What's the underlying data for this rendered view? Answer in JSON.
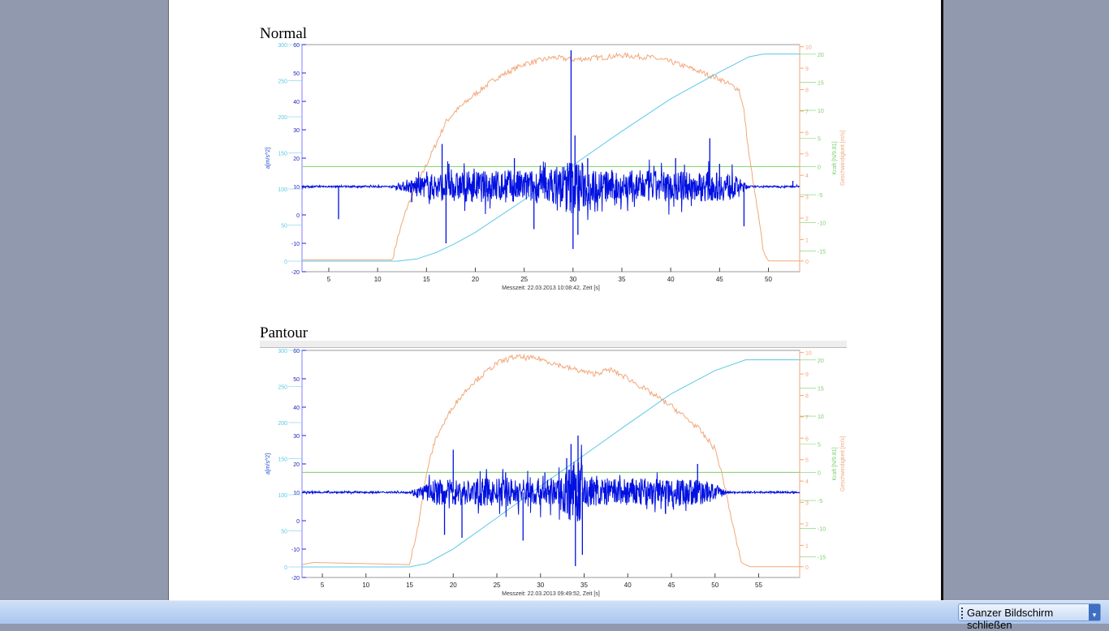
{
  "taskbar": {
    "close_fullscreen_label": "Ganzer Bildschirm schließen",
    "dropdown_icon": "chevron-down-icon"
  },
  "colors": {
    "accel": "#0010e0",
    "distance": "#5cc8e8",
    "force": "#7ccf6a",
    "speed": "#f2a77a"
  },
  "chart_data": [
    {
      "type": "line",
      "title": "Normal",
      "xlabel": "Messzeit: 22.03.2013   10:08:42,   Zeit [s]",
      "xlim": [
        2.26,
        53.2
      ],
      "xticks": [
        5,
        10,
        15,
        20,
        25,
        30,
        35,
        40,
        45,
        50
      ],
      "left_axis_label": "a[m/s^2]",
      "left_ticks": [
        60,
        50,
        40,
        30,
        20,
        10,
        0,
        -10,
        -20
      ],
      "left_lim": [
        -20,
        60
      ],
      "left2_ticks": [
        300,
        250,
        200,
        150,
        100,
        50,
        0
      ],
      "left2_lim": [
        -14.6,
        300
      ],
      "right_axis_labels": [
        "Kraft [N/9.81]",
        "Geschwindigkeit [m/s]"
      ],
      "right_force_ticks": [
        20,
        15,
        10,
        5,
        0,
        -5,
        -10,
        -15
      ],
      "right_force_lim": [
        -18.7,
        21.7
      ],
      "right_speed_ticks": [
        10,
        9,
        8,
        7,
        6,
        5,
        4,
        3,
        2,
        1,
        0
      ],
      "right_speed_lim": [
        -0.5,
        10.1
      ],
      "series": [
        {
          "name": "Geschwindigkeit",
          "axis": "speed",
          "points": [
            [
              2.3,
              0.05
            ],
            [
              11.5,
              0.05
            ],
            [
              12,
              1
            ],
            [
              13,
              2.5
            ],
            [
              15,
              4.5
            ],
            [
              16,
              5.5
            ],
            [
              17,
              6.5
            ],
            [
              18,
              7
            ],
            [
              20,
              7.8
            ],
            [
              22,
              8.5
            ],
            [
              25,
              9.2
            ],
            [
              28,
              9.5
            ],
            [
              30,
              9.4
            ],
            [
              33,
              9.5
            ],
            [
              35,
              9.6
            ],
            [
              38,
              9.5
            ],
            [
              40,
              9.3
            ],
            [
              42,
              9
            ],
            [
              45,
              8.5
            ],
            [
              47,
              8
            ],
            [
              47.5,
              7
            ],
            [
              48,
              5
            ],
            [
              49,
              2
            ],
            [
              49.5,
              0.4
            ],
            [
              50,
              0
            ],
            [
              53.2,
              0
            ]
          ]
        },
        {
          "name": "Weg",
          "axis": "left2",
          "points": [
            [
              2.3,
              0
            ],
            [
              12,
              0
            ],
            [
              14,
              3
            ],
            [
              16,
              12
            ],
            [
              18,
              25
            ],
            [
              20,
              40
            ],
            [
              25,
              85
            ],
            [
              30,
              133
            ],
            [
              35,
              180
            ],
            [
              40,
              225
            ],
            [
              45,
              262
            ],
            [
              48,
              283
            ],
            [
              49.5,
              287
            ],
            [
              53.2,
              287
            ]
          ]
        },
        {
          "name": "Kraft",
          "axis": "force",
          "points": [
            [
              2.3,
              0
            ],
            [
              53.2,
              0
            ]
          ]
        },
        {
          "name": "Beschleunigung",
          "axis": "left",
          "base": 10,
          "envelope": [
            [
              2.3,
              0.3
            ],
            [
              11.5,
              0.3
            ],
            [
              12.5,
              1.5
            ],
            [
              14,
              3
            ],
            [
              16,
              5
            ],
            [
              20,
              5.5
            ],
            [
              28,
              6
            ],
            [
              29.5,
              10
            ],
            [
              30.5,
              10
            ],
            [
              32,
              6
            ],
            [
              40,
              5.5
            ],
            [
              46,
              5
            ],
            [
              47,
              3
            ],
            [
              48,
              0.3
            ],
            [
              53.2,
              0.3
            ]
          ],
          "spikes": [
            [
              6,
              -1.5
            ],
            [
              13.5,
              4.5
            ],
            [
              15.3,
              10
            ],
            [
              16.6,
              25
            ],
            [
              17,
              -10
            ],
            [
              17.3,
              18
            ],
            [
              21,
              12
            ],
            [
              24,
              20
            ],
            [
              26,
              -5
            ],
            [
              29.8,
              58
            ],
            [
              30,
              -12
            ],
            [
              30.2,
              28
            ],
            [
              30.5,
              -7
            ],
            [
              31.5,
              20
            ],
            [
              36,
              15
            ],
            [
              39,
              12
            ],
            [
              40.5,
              20
            ],
            [
              44,
              27
            ],
            [
              45,
              18
            ],
            [
              47.5,
              -4
            ],
            [
              52.5,
              12
            ]
          ]
        }
      ]
    },
    {
      "type": "line",
      "title": "Pantour",
      "xlabel": "Messzeit: 22.03.2013   09:49:52,   Zeit [s]",
      "xlim": [
        2.67,
        59.7
      ],
      "xticks": [
        5,
        10,
        15,
        20,
        25,
        30,
        35,
        40,
        45,
        50,
        55
      ],
      "left_axis_label": "a[m/s^2]",
      "left_ticks": [
        60,
        50,
        40,
        30,
        20,
        10,
        0,
        -10,
        -20
      ],
      "left_lim": [
        -20,
        60
      ],
      "left2_ticks": [
        300,
        250,
        200,
        150,
        100,
        50,
        0
      ],
      "left2_lim": [
        -14.6,
        300
      ],
      "right_axis_labels": [
        "Kraft [N/9.81]",
        "Geschwindigkeit [m/s]"
      ],
      "right_force_ticks": [
        20,
        15,
        10,
        5,
        0,
        -5,
        -10,
        -15
      ],
      "right_force_lim": [
        -18.7,
        21.7
      ],
      "right_speed_ticks": [
        10,
        9,
        8,
        7,
        6,
        5,
        4,
        3,
        2,
        1,
        0
      ],
      "right_speed_lim": [
        -0.5,
        10.1
      ],
      "series": [
        {
          "name": "Geschwindigkeit",
          "axis": "speed",
          "points": [
            [
              2.7,
              0.1
            ],
            [
              4,
              0.2
            ],
            [
              15,
              0.1
            ],
            [
              16,
              2
            ],
            [
              17,
              4.5
            ],
            [
              18,
              6
            ],
            [
              20,
              7.5
            ],
            [
              22,
              8.5
            ],
            [
              25,
              9.5
            ],
            [
              27,
              9.8
            ],
            [
              30,
              9.7
            ],
            [
              33,
              9.3
            ],
            [
              36,
              9
            ],
            [
              38,
              9.2
            ],
            [
              40,
              8.8
            ],
            [
              45,
              7.5
            ],
            [
              48,
              6.5
            ],
            [
              50,
              5.5
            ],
            [
              51,
              4
            ],
            [
              52,
              2
            ],
            [
              53,
              0.2
            ],
            [
              54,
              0
            ],
            [
              59.7,
              0
            ]
          ]
        },
        {
          "name": "Weg",
          "axis": "left2",
          "points": [
            [
              2.7,
              0
            ],
            [
              15,
              0
            ],
            [
              17,
              5
            ],
            [
              20,
              25
            ],
            [
              25,
              68
            ],
            [
              30,
              112
            ],
            [
              35,
              155
            ],
            [
              40,
              198
            ],
            [
              45,
              240
            ],
            [
              50,
              272
            ],
            [
              53.5,
              287
            ],
            [
              59.7,
              287
            ]
          ]
        },
        {
          "name": "Kraft",
          "axis": "force",
          "points": [
            [
              2.7,
              0
            ],
            [
              59.7,
              0
            ]
          ]
        },
        {
          "name": "Beschleunigung",
          "axis": "left",
          "base": 10,
          "envelope": [
            [
              2.7,
              0.3
            ],
            [
              15,
              0.3
            ],
            [
              16,
              2
            ],
            [
              18,
              4.5
            ],
            [
              25,
              5
            ],
            [
              32,
              5
            ],
            [
              33.5,
              11
            ],
            [
              34.5,
              11
            ],
            [
              36,
              5
            ],
            [
              48,
              5
            ],
            [
              50,
              3
            ],
            [
              51.5,
              0.3
            ],
            [
              59.7,
              0.3
            ]
          ],
          "spikes": [
            [
              19,
              -5
            ],
            [
              20,
              25
            ],
            [
              21,
              -6
            ],
            [
              26,
              17
            ],
            [
              28,
              -7
            ],
            [
              30.5,
              17
            ],
            [
              33,
              22
            ],
            [
              33.5,
              27
            ],
            [
              34,
              -16
            ],
            [
              34.3,
              30
            ],
            [
              34.8,
              -12
            ],
            [
              36,
              13
            ],
            [
              46,
              14
            ],
            [
              48,
              20
            ]
          ]
        }
      ]
    }
  ]
}
